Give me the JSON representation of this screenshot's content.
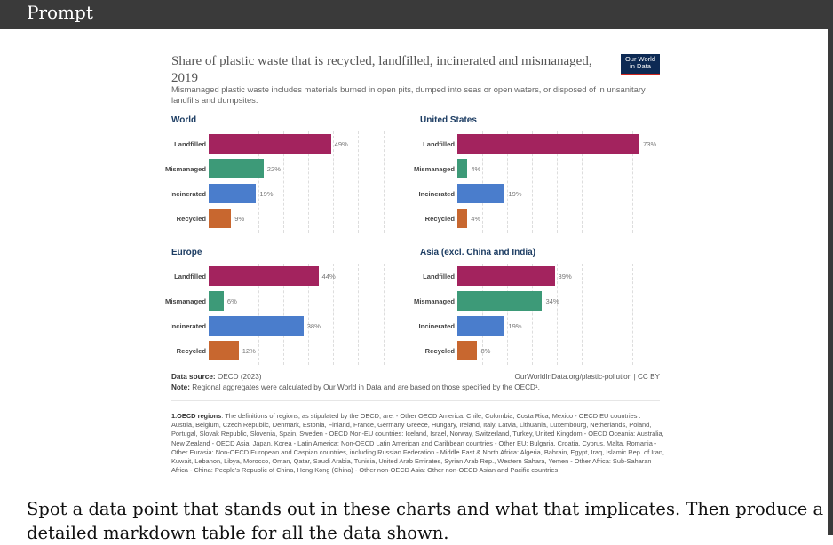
{
  "header": {
    "label": "Prompt"
  },
  "chart_data": {
    "type": "bar",
    "title": "Share of plastic waste that is recycled, landfilled, incinerated and mismanaged, 2019",
    "subtitle": "Mismanaged plastic waste includes materials burned in open pits, dumped into seas or open waters, or disposed of in unsanitary landfills and dumpsites.",
    "logo": "Our World in Data",
    "categories": [
      "Landfilled",
      "Mismanaged",
      "Incinerated",
      "Recycled"
    ],
    "colors": [
      "#a3235e",
      "#3d9a78",
      "#4a7dcc",
      "#c8672f"
    ],
    "unit": "%",
    "xlim": [
      0,
      73
    ],
    "panels": [
      {
        "name": "World",
        "values": [
          49,
          22,
          19,
          9
        ]
      },
      {
        "name": "United States",
        "values": [
          73,
          4,
          19,
          4
        ]
      },
      {
        "name": "Europe",
        "values": [
          44,
          6,
          38,
          12
        ]
      },
      {
        "name": "Asia (excl. China and India)",
        "values": [
          39,
          34,
          19,
          8
        ]
      }
    ]
  },
  "footer": {
    "source_label": "Data source:",
    "source": "OECD (2023)",
    "url": "OurWorldInData.org/plastic-pollution | CC BY",
    "note_label": "Note:",
    "note": "Regional aggregates were calculated by Our World in Data and are based on those specified by the OECD¹.",
    "footnote_label": "1.OECD regions",
    "footnote": ": The definitions of regions, as stipulated by the OECD, are: - Other OECD America: Chile, Colombia, Costa Rica, Mexico - OECD EU countries : Austria, Belgium, Czech Republic, Denmark, Estonia, Finland, France, Germany Greece, Hungary, Ireland, Italy, Latvia, Lithuania, Luxembourg, Netherlands, Poland, Portugal, Slovak Republic, Slovenia, Spain, Sweden - OECD Non-EU countries: Iceland, Israel, Norway, Switzerland, Turkey, United Kingdom - OECD Oceania: Australia, New Zealand - OECD Asia: Japan, Korea - Latin America: Non-OECD Latin American and Caribbean countries - Other EU: Bulgaria, Croatia, Cyprus, Malta, Romania - Other Eurasia: Non-OECD European and Caspian countries, including Russian Federation - Middle East & North Africa: Algeria, Bahrain, Egypt, Iraq, Islamic Rep. of Iran, Kuwait, Lebanon, Libya, Morocco, Oman, Qatar, Saudi Arabia, Tunisia, United Arab Emirates, Syrian Arab Rep., Western Sahara, Yemen - Other Africa: Sub-Saharan Africa - China: People's Republic of China, Hong Kong (China) - Other non-OECD Asia: Other non-OECD Asian and Pacific countries"
  },
  "question": "Spot a data point that stands out in these charts and what that implicates. Then produce a detailed markdown table for all the data shown."
}
